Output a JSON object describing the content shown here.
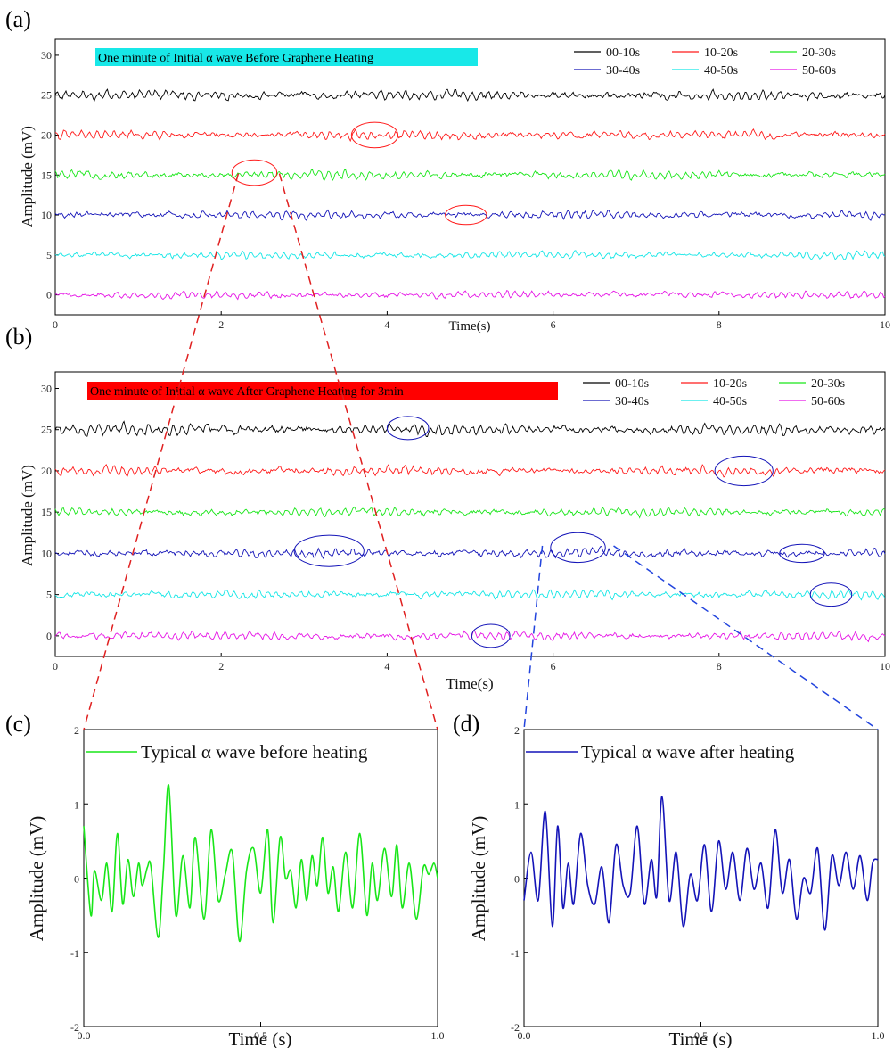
{
  "colors": {
    "black": "#000000",
    "red": "#ff1a1a",
    "green": "#19e619",
    "blue": "#1414b8",
    "cyan": "#14e6e6",
    "magenta": "#e614e6",
    "banner_a": "#18e8e8",
    "banner_b": "#ff0000",
    "zoom_red": "#e02020",
    "zoom_blue": "#2244dd"
  },
  "chart_data": [
    {
      "id": "a",
      "panel_label": "(a)",
      "type": "line",
      "banner": "One minute of Initial α wave Before Graphene Heating",
      "xlabel": "Time(s)",
      "ylabel": "Amplitude (mV)",
      "xlim": [
        0,
        10
      ],
      "ylim": [
        -2.5,
        32
      ],
      "xticks": [
        "0",
        "2",
        "4",
        "6",
        "8",
        "10"
      ],
      "yticks": [
        "0",
        "5",
        "10",
        "15",
        "20",
        "25",
        "30"
      ],
      "legend_position": "top-right",
      "series": [
        {
          "name": "00-10s",
          "offset": 25,
          "amplitude": 0.6,
          "color_key": "black"
        },
        {
          "name": "10-20s",
          "offset": 20,
          "amplitude": 0.55,
          "color_key": "red"
        },
        {
          "name": "20-30s",
          "offset": 15,
          "amplitude": 0.55,
          "color_key": "green"
        },
        {
          "name": "30-40s",
          "offset": 10,
          "amplitude": 0.5,
          "color_key": "blue"
        },
        {
          "name": "40-50s",
          "offset": 5,
          "amplitude": 0.45,
          "color_key": "cyan"
        },
        {
          "name": "50-60s",
          "offset": 0,
          "amplitude": 0.45,
          "color_key": "magenta"
        }
      ],
      "highlights": [
        {
          "x": 3.85,
          "y": 20,
          "rx": 0.28,
          "ry": 1.6,
          "color_key": "red"
        },
        {
          "x": 2.4,
          "y": 15.3,
          "rx": 0.27,
          "ry": 1.6,
          "color_key": "red"
        },
        {
          "x": 4.95,
          "y": 10,
          "rx": 0.25,
          "ry": 1.2,
          "color_key": "red"
        }
      ]
    },
    {
      "id": "b",
      "panel_label": "(b)",
      "type": "line",
      "banner": "One minute of Initial α wave After Graphene Heating for 3min",
      "xlabel": "Time(s)",
      "ylabel": "Amplitude (mV)",
      "xlim": [
        0,
        10
      ],
      "ylim": [
        -2.5,
        32
      ],
      "xticks": [
        "0",
        "2",
        "4",
        "6",
        "8",
        "10"
      ],
      "yticks": [
        "0",
        "5",
        "10",
        "15",
        "20",
        "25",
        "30"
      ],
      "legend_position": "top-right",
      "series": [
        {
          "name": "00-10s",
          "offset": 25,
          "amplitude": 0.65,
          "color_key": "black"
        },
        {
          "name": "10-20s",
          "offset": 20,
          "amplitude": 0.55,
          "color_key": "red"
        },
        {
          "name": "20-30s",
          "offset": 15,
          "amplitude": 0.5,
          "color_key": "green"
        },
        {
          "name": "30-40s",
          "offset": 10,
          "amplitude": 0.55,
          "color_key": "blue"
        },
        {
          "name": "40-50s",
          "offset": 5,
          "amplitude": 0.5,
          "color_key": "cyan"
        },
        {
          "name": "50-60s",
          "offset": 0,
          "amplitude": 0.5,
          "color_key": "magenta"
        }
      ],
      "highlights": [
        {
          "x": 4.25,
          "y": 25.2,
          "rx": 0.25,
          "ry": 1.4,
          "color_key": "blue"
        },
        {
          "x": 8.3,
          "y": 20,
          "rx": 0.35,
          "ry": 1.8,
          "color_key": "blue"
        },
        {
          "x": 3.3,
          "y": 10.3,
          "rx": 0.42,
          "ry": 1.9,
          "color_key": "blue"
        },
        {
          "x": 6.3,
          "y": 10.7,
          "rx": 0.33,
          "ry": 1.8,
          "color_key": "blue"
        },
        {
          "x": 9.0,
          "y": 10,
          "rx": 0.27,
          "ry": 1.1,
          "color_key": "blue"
        },
        {
          "x": 9.35,
          "y": 5,
          "rx": 0.25,
          "ry": 1.4,
          "color_key": "blue"
        },
        {
          "x": 5.25,
          "y": 0,
          "rx": 0.23,
          "ry": 1.4,
          "color_key": "blue"
        }
      ]
    },
    {
      "id": "c",
      "panel_label": "(c)",
      "type": "line",
      "xlabel": "Time (s)",
      "ylabel": "Amplitude (mV)",
      "xlim": [
        0,
        1
      ],
      "ylim": [
        -2,
        2
      ],
      "xticks": [
        "0.0",
        "0.5",
        "1.0"
      ],
      "yticks": [
        "-2",
        "-1",
        "0",
        "1",
        "2"
      ],
      "legend_position": "top",
      "series": [
        {
          "name": "Typical α wave before heating",
          "color_key": "green",
          "x": [
            0.0,
            0.02,
            0.03,
            0.05,
            0.065,
            0.08,
            0.095,
            0.11,
            0.125,
            0.14,
            0.155,
            0.165,
            0.18,
            0.19,
            0.21,
            0.225,
            0.24,
            0.26,
            0.28,
            0.3,
            0.315,
            0.34,
            0.36,
            0.38,
            0.4,
            0.42,
            0.44,
            0.46,
            0.48,
            0.5,
            0.52,
            0.535,
            0.555,
            0.57,
            0.585,
            0.6,
            0.615,
            0.63,
            0.645,
            0.66,
            0.675,
            0.69,
            0.705,
            0.72,
            0.74,
            0.76,
            0.78,
            0.8,
            0.815,
            0.83,
            0.85,
            0.87,
            0.885,
            0.9,
            0.92,
            0.94,
            0.96,
            0.975,
            0.99,
            1.0
          ],
          "y": [
            0.7,
            -0.5,
            0.1,
            -0.3,
            0.2,
            -0.45,
            0.6,
            -0.35,
            0.25,
            -0.25,
            0.2,
            -0.1,
            0.15,
            0.15,
            -0.8,
            0.1,
            1.25,
            -0.5,
            0.3,
            -0.4,
            0.55,
            -0.55,
            0.65,
            -0.3,
            0.05,
            0.35,
            -0.85,
            0.1,
            0.4,
            -0.2,
            0.65,
            -0.6,
            0.55,
            0.0,
            0.1,
            -0.4,
            0.25,
            -0.3,
            0.3,
            -0.1,
            0.55,
            -0.2,
            0.15,
            -0.45,
            0.35,
            -0.4,
            0.6,
            -0.5,
            0.2,
            -0.3,
            0.4,
            -0.25,
            0.45,
            -0.4,
            0.2,
            -0.55,
            0.15,
            0.05,
            0.2,
            0.0
          ]
        }
      ]
    },
    {
      "id": "d",
      "panel_label": "(d)",
      "type": "line",
      "xlabel": "Time (s)",
      "ylabel": "Amplitude (mV)",
      "xlim": [
        0,
        1
      ],
      "ylim": [
        -2,
        2
      ],
      "xticks": [
        "0.0",
        "0.5",
        "1.0"
      ],
      "yticks": [
        "-2",
        "-1",
        "0",
        "1",
        "2"
      ],
      "legend_position": "top",
      "series": [
        {
          "name": "Typical α wave after heating",
          "color_key": "blue",
          "x": [
            0.0,
            0.02,
            0.04,
            0.06,
            0.08,
            0.095,
            0.11,
            0.125,
            0.14,
            0.16,
            0.18,
            0.2,
            0.22,
            0.24,
            0.26,
            0.28,
            0.3,
            0.32,
            0.34,
            0.36,
            0.375,
            0.39,
            0.41,
            0.43,
            0.45,
            0.47,
            0.49,
            0.51,
            0.53,
            0.55,
            0.57,
            0.59,
            0.61,
            0.63,
            0.65,
            0.67,
            0.69,
            0.71,
            0.73,
            0.75,
            0.77,
            0.79,
            0.81,
            0.83,
            0.85,
            0.87,
            0.89,
            0.91,
            0.93,
            0.95,
            0.97,
            0.985,
            1.0
          ],
          "y": [
            -0.3,
            0.35,
            -0.3,
            0.9,
            -0.65,
            0.7,
            -0.4,
            0.2,
            -0.35,
            0.6,
            -0.1,
            -0.35,
            0.15,
            -0.6,
            0.45,
            -0.1,
            -0.2,
            0.7,
            -0.35,
            0.25,
            -0.25,
            1.1,
            -0.3,
            0.35,
            -0.65,
            0.05,
            -0.3,
            0.45,
            -0.45,
            0.5,
            -0.15,
            0.35,
            -0.3,
            0.4,
            -0.15,
            0.2,
            -0.4,
            0.65,
            -0.2,
            0.25,
            -0.55,
            0.0,
            -0.2,
            0.4,
            -0.7,
            0.3,
            -0.1,
            0.35,
            -0.15,
            0.3,
            -0.3,
            0.2,
            0.25
          ]
        }
      ]
    }
  ]
}
